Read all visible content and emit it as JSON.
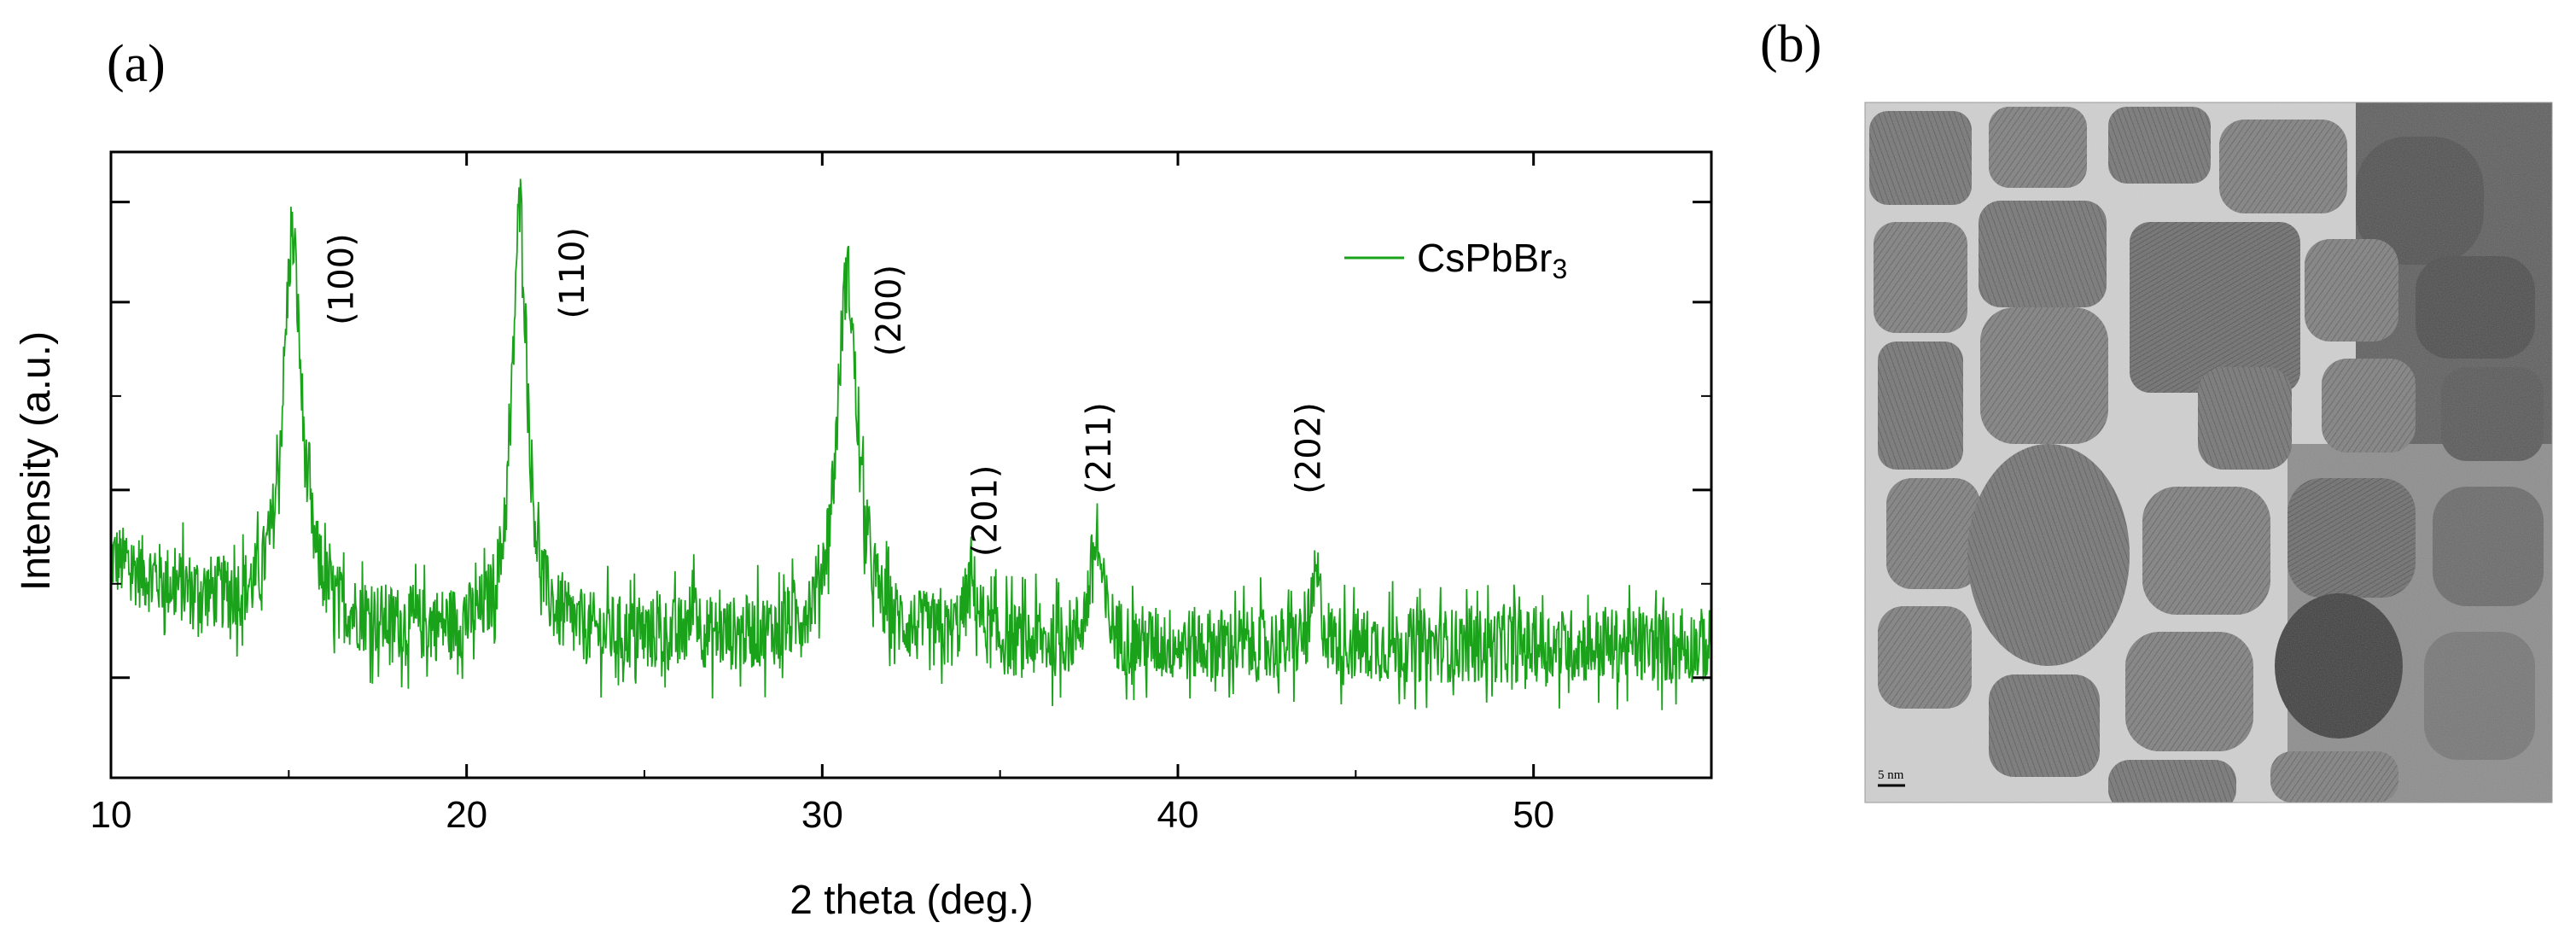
{
  "panels": {
    "a_label": "(a)",
    "b_label": "(b)"
  },
  "chart_data": {
    "type": "line",
    "panel": "(a)",
    "title": "",
    "xlabel": "2 theta (deg.)",
    "ylabel": "Intensity (a.u.)",
    "xlim": [
      10,
      55
    ],
    "ylim": [
      0,
      100
    ],
    "xticks": [
      10,
      20,
      30,
      40,
      50
    ],
    "xtick_labels": [
      "10",
      "20",
      "30",
      "40",
      "50"
    ],
    "y_tick_labels_shown": false,
    "grid": false,
    "legend_position": "top-right",
    "color": "#1aa31a",
    "series": [
      {
        "name": "CsPbBr3",
        "legend_text": "CsPbBr",
        "legend_subscript": "3",
        "baseline": 22,
        "baseline_start": 35,
        "baseline_decay_to": 20.5,
        "noise_amplitude": 6,
        "peaks": [
          {
            "x": 15.1,
            "height": 60,
            "width": 0.32
          },
          {
            "x": 21.5,
            "height": 68,
            "width": 0.26
          },
          {
            "x": 30.7,
            "height": 58,
            "width": 0.35
          },
          {
            "x": 26.4,
            "height": 8,
            "width": 0.08
          },
          {
            "x": 34.2,
            "height": 9,
            "width": 0.25
          },
          {
            "x": 37.7,
            "height": 16,
            "width": 0.22
          },
          {
            "x": 43.9,
            "height": 11,
            "width": 0.14
          }
        ]
      }
    ],
    "annotations": [
      {
        "text": "(100)",
        "x": 16.8,
        "y_top": 87
      },
      {
        "text": "(110)",
        "x": 23.3,
        "y_top": 88
      },
      {
        "text": "(200)",
        "x": 32.2,
        "y_top": 82
      },
      {
        "text": "(201)",
        "x": 34.9,
        "y_top": 50
      },
      {
        "text": "(211)",
        "x": 38.1,
        "y_top": 60
      },
      {
        "text": "(202)",
        "x": 44.0,
        "y_top": 60
      }
    ]
  },
  "image_panel": {
    "description_icon": "tem-micrograph",
    "scale_bar_label": "5 nm"
  }
}
